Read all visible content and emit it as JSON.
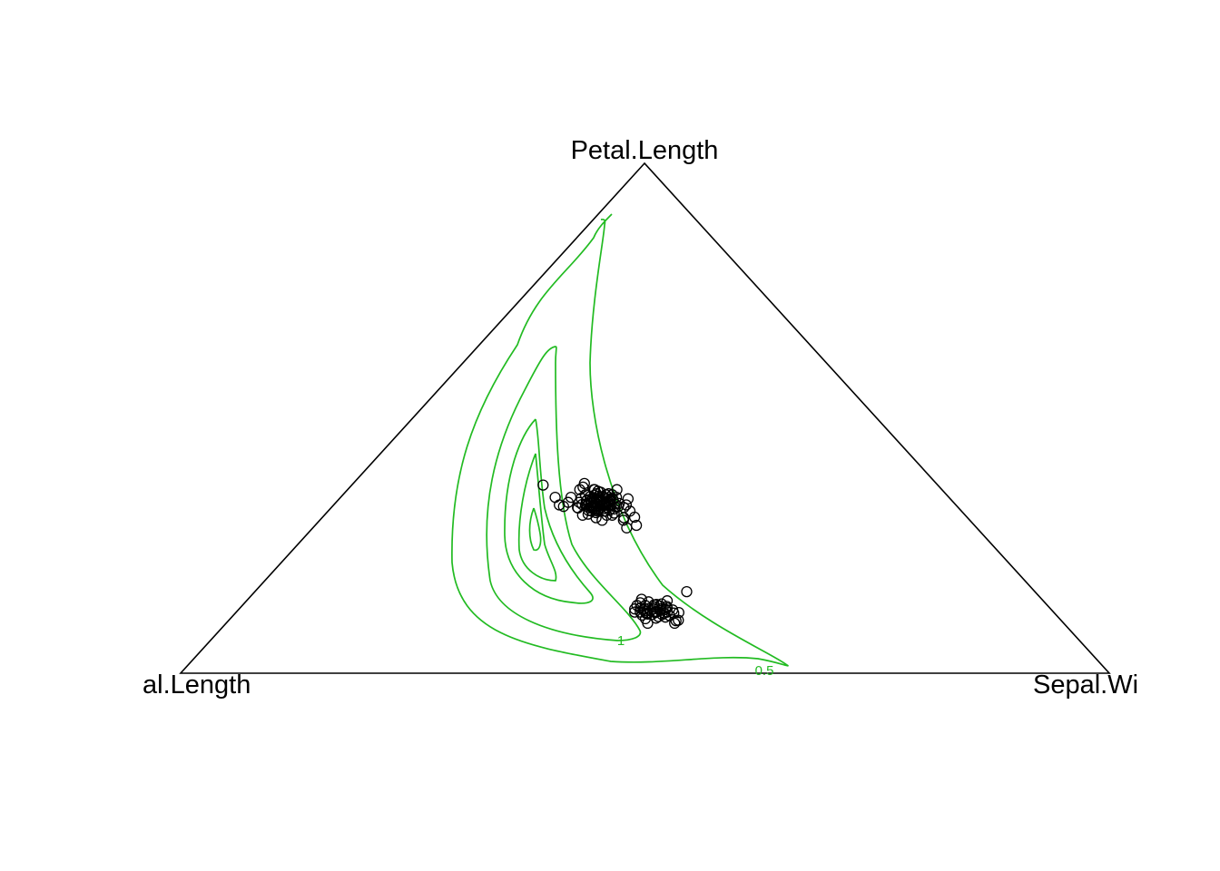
{
  "chart_data": {
    "type": "scatter",
    "subtype": "ternary",
    "vertices": {
      "top": "Petal.Length",
      "left": "al.Length",
      "right": "Sepal.Wi"
    },
    "point_style": "open-circle",
    "point_color": "#000000",
    "contour_color": "#22bb22",
    "contour_levels": [
      {
        "label": "0.5",
        "level": 0.5
      },
      {
        "label": "1",
        "level": 1
      },
      {
        "label": "",
        "level": 1.5
      },
      {
        "label": "",
        "level": 2
      },
      {
        "label": "",
        "level": 2.5
      }
    ],
    "series": [
      {
        "points": [
          [
            0.394,
            0.326,
            0.28
          ],
          [
            0.38,
            0.34,
            0.28
          ],
          [
            0.375,
            0.337,
            0.288
          ],
          [
            0.39,
            0.32,
            0.29
          ],
          [
            0.368,
            0.338,
            0.294
          ],
          [
            0.398,
            0.324,
            0.278
          ],
          [
            0.372,
            0.346,
            0.282
          ],
          [
            0.385,
            0.33,
            0.285
          ],
          [
            0.36,
            0.35,
            0.29
          ],
          [
            0.401,
            0.319,
            0.28
          ],
          [
            0.379,
            0.33,
            0.291
          ],
          [
            0.366,
            0.345,
            0.289
          ],
          [
            0.39,
            0.335,
            0.275
          ],
          [
            0.382,
            0.34,
            0.278
          ],
          [
            0.371,
            0.33,
            0.299
          ],
          [
            0.395,
            0.315,
            0.29
          ],
          [
            0.376,
            0.352,
            0.272
          ],
          [
            0.387,
            0.327,
            0.286
          ],
          [
            0.364,
            0.34,
            0.296
          ],
          [
            0.399,
            0.33,
            0.271
          ],
          [
            0.383,
            0.318,
            0.299
          ],
          [
            0.37,
            0.355,
            0.275
          ],
          [
            0.392,
            0.34,
            0.268
          ],
          [
            0.378,
            0.325,
            0.297
          ],
          [
            0.361,
            0.333,
            0.306
          ],
          [
            0.405,
            0.312,
            0.283
          ],
          [
            0.374,
            0.36,
            0.266
          ],
          [
            0.386,
            0.31,
            0.304
          ],
          [
            0.358,
            0.345,
            0.297
          ],
          [
            0.397,
            0.343,
            0.26
          ],
          [
            0.381,
            0.335,
            0.284
          ],
          [
            0.369,
            0.326,
            0.305
          ],
          [
            0.393,
            0.328,
            0.279
          ],
          [
            0.377,
            0.347,
            0.276
          ],
          [
            0.388,
            0.322,
            0.29
          ],
          [
            0.363,
            0.352,
            0.285
          ],
          [
            0.41,
            0.325,
            0.265
          ],
          [
            0.355,
            0.33,
            0.315
          ],
          [
            0.384,
            0.365,
            0.251
          ],
          [
            0.4,
            0.305,
            0.295
          ],
          [
            0.35,
            0.36,
            0.29
          ],
          [
            0.415,
            0.335,
            0.25
          ],
          [
            0.373,
            0.3,
            0.327
          ],
          [
            0.389,
            0.35,
            0.261
          ],
          [
            0.357,
            0.318,
            0.325
          ],
          [
            0.407,
            0.345,
            0.248
          ],
          [
            0.379,
            0.372,
            0.249
          ],
          [
            0.396,
            0.3,
            0.304
          ],
          [
            0.347,
            0.342,
            0.311
          ],
          [
            0.412,
            0.31,
            0.278
          ],
          [
            0.37,
            0.305,
            0.325
          ],
          [
            0.39,
            0.36,
            0.25
          ],
          [
            0.36,
            0.325,
            0.315
          ],
          [
            0.403,
            0.335,
            0.262
          ],
          [
            0.38,
            0.31,
            0.31
          ],
          [
            0.375,
            0.36,
            0.265
          ],
          [
            0.398,
            0.318,
            0.284
          ],
          [
            0.366,
            0.332,
            0.302
          ],
          [
            0.386,
            0.346,
            0.268
          ],
          [
            0.372,
            0.322,
            0.306
          ],
          [
            0.424,
            0.345,
            0.231
          ],
          [
            0.427,
            0.33,
            0.243
          ],
          [
            0.377,
            0.285,
            0.338
          ],
          [
            0.364,
            0.29,
            0.346
          ],
          [
            0.424,
            0.327,
            0.249
          ],
          [
            0.425,
            0.369,
            0.206
          ],
          [
            0.41,
            0.324,
            0.266
          ],
          [
            0.358,
            0.306,
            0.336
          ],
          [
            0.366,
            0.342,
            0.292
          ],
          [
            0.381,
            0.33,
            0.289
          ],
          [
            0.368,
            0.34,
            0.292
          ],
          [
            0.392,
            0.318,
            0.29
          ],
          [
            0.372,
            0.357,
            0.271
          ],
          [
            0.402,
            0.331,
            0.267
          ],
          [
            0.387,
            0.336,
            0.277
          ],
          [
            0.376,
            0.314,
            0.31
          ],
          [
            0.395,
            0.325,
            0.28
          ],
          [
            0.382,
            0.329,
            0.289
          ],
          [
            0.369,
            0.338,
            0.293
          ],
          [
            0.391,
            0.334,
            0.275
          ],
          [
            0.374,
            0.328,
            0.298
          ],
          [
            0.384,
            0.344,
            0.272
          ],
          [
            0.378,
            0.32,
            0.302
          ],
          [
            0.388,
            0.339,
            0.273
          ],
          [
            0.371,
            0.335,
            0.294
          ],
          [
            0.397,
            0.332,
            0.271
          ],
          [
            0.365,
            0.327,
            0.308
          ],
          [
            0.385,
            0.318,
            0.297
          ],
          [
            0.38,
            0.349,
            0.271
          ],
          [
            0.393,
            0.322,
            0.285
          ],
          [
            0.377,
            0.333,
            0.29
          ],
          [
            0.367,
            0.35,
            0.283
          ],
          [
            0.389,
            0.328,
            0.283
          ],
          [
            0.383,
            0.323,
            0.294
          ],
          [
            0.373,
            0.343,
            0.284
          ],
          [
            0.394,
            0.338,
            0.268
          ],
          [
            0.379,
            0.341,
            0.28
          ],
          [
            0.391,
            0.329,
            0.28
          ],
          [
            0.376,
            0.331,
            0.293
          ],
          [
            0.386,
            0.337,
            0.277
          ]
        ]
      },
      {
        "points": [
          [
            0.422,
            0.123,
            0.455
          ],
          [
            0.43,
            0.12,
            0.45
          ],
          [
            0.425,
            0.13,
            0.445
          ],
          [
            0.438,
            0.118,
            0.444
          ],
          [
            0.415,
            0.125,
            0.46
          ],
          [
            0.432,
            0.127,
            0.441
          ],
          [
            0.42,
            0.118,
            0.462
          ],
          [
            0.44,
            0.124,
            0.436
          ],
          [
            0.418,
            0.132,
            0.45
          ],
          [
            0.435,
            0.115,
            0.45
          ],
          [
            0.427,
            0.121,
            0.452
          ],
          [
            0.412,
            0.128,
            0.46
          ],
          [
            0.445,
            0.12,
            0.435
          ],
          [
            0.424,
            0.115,
            0.461
          ],
          [
            0.433,
            0.133,
            0.434
          ],
          [
            0.416,
            0.12,
            0.464
          ],
          [
            0.441,
            0.128,
            0.431
          ],
          [
            0.428,
            0.126,
            0.446
          ],
          [
            0.42,
            0.135,
            0.445
          ],
          [
            0.437,
            0.122,
            0.441
          ],
          [
            0.41,
            0.118,
            0.472
          ],
          [
            0.448,
            0.126,
            0.426
          ],
          [
            0.423,
            0.11,
            0.467
          ],
          [
            0.436,
            0.138,
            0.426
          ],
          [
            0.414,
            0.136,
            0.45
          ],
          [
            0.446,
            0.114,
            0.44
          ],
          [
            0.42,
            0.126,
            0.454
          ],
          [
            0.43,
            0.111,
            0.459
          ],
          [
            0.408,
            0.124,
            0.468
          ],
          [
            0.451,
            0.12,
            0.429
          ],
          [
            0.426,
            0.14,
            0.434
          ],
          [
            0.434,
            0.108,
            0.458
          ],
          [
            0.417,
            0.113,
            0.47
          ],
          [
            0.442,
            0.133,
            0.425
          ],
          [
            0.411,
            0.131,
            0.458
          ],
          [
            0.439,
            0.116,
            0.445
          ],
          [
            0.405,
            0.142,
            0.453
          ],
          [
            0.448,
            0.098,
            0.454
          ],
          [
            0.415,
            0.103,
            0.482
          ],
          [
            0.431,
            0.145,
            0.424
          ],
          [
            0.419,
            0.098,
            0.483
          ],
          [
            0.446,
            0.107,
            0.447
          ],
          [
            0.412,
            0.104,
            0.484
          ],
          [
            0.404,
            0.119,
            0.477
          ],
          [
            0.423,
            0.134,
            0.443
          ],
          [
            0.429,
            0.119,
            0.452
          ],
          [
            0.437,
            0.127,
            0.436
          ],
          [
            0.421,
            0.117,
            0.462
          ],
          [
            0.44,
            0.117,
            0.443
          ],
          [
            0.375,
            0.16,
            0.465
          ]
        ]
      }
    ]
  }
}
